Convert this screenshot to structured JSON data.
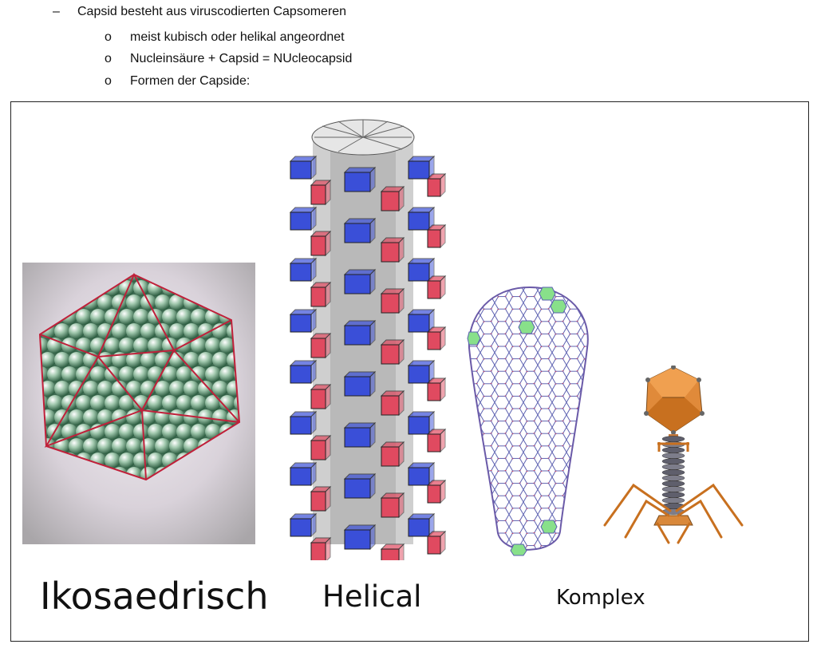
{
  "bullets": {
    "level1": {
      "marker": "–",
      "text": "Capsid besteht aus viruscodierten Capsomeren"
    },
    "level2": [
      {
        "marker": "o",
        "text": "meist kubisch oder helikal angeordnet"
      },
      {
        "marker": "o",
        "text": "Nucleinsäure + Capsid = NUcleocapsid"
      },
      {
        "marker": "o",
        "text": "Formen der Capside:"
      }
    ]
  },
  "figure": {
    "labels": {
      "icosahedral": "Ikosaedrisch",
      "helical": "Helical",
      "complex": "Komplex"
    },
    "icons": [
      "icosahedral-capsid-icon",
      "helical-capsid-icon",
      "conical-capsid-icon",
      "bacteriophage-icon"
    ],
    "colors": {
      "sphere_green": "#3f7a5a",
      "edge_red": "#c0203a",
      "block_blue": "#3a4fd8",
      "block_red": "#e04a60",
      "phage_orange": "#e08a3a",
      "hex_green": "#88e08a"
    }
  }
}
